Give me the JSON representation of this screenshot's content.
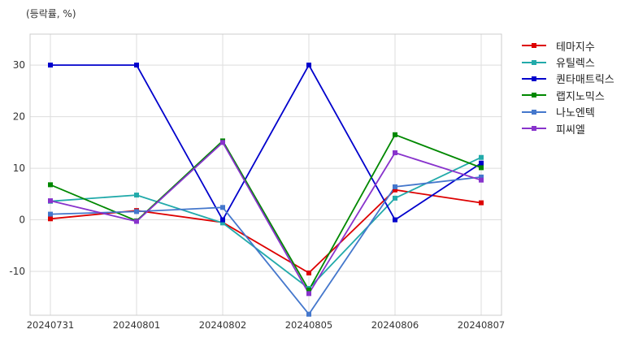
{
  "chart_data": {
    "type": "line",
    "unit_label": "(등락률, %)",
    "x": [
      "20240731",
      "20240801",
      "20240802",
      "20240805",
      "20240806",
      "20240807"
    ],
    "ylim": [
      -18.5,
      36
    ],
    "yticks": [
      -10,
      0,
      10,
      20,
      30
    ],
    "grid": true,
    "legend_position": "outside-right-top",
    "series": [
      {
        "name": "테마지수",
        "color": "#dd0000",
        "values": [
          0.2,
          1.8,
          -0.5,
          -10.3,
          5.8,
          3.3
        ]
      },
      {
        "name": "유틸렉스",
        "color": "#22aaaa",
        "values": [
          3.6,
          4.8,
          -0.6,
          -13.3,
          4.2,
          12.1
        ]
      },
      {
        "name": "퀀타매트릭스",
        "color": "#0000cc",
        "values": [
          30.0,
          30.0,
          0.0,
          30.0,
          0.0,
          11.0
        ]
      },
      {
        "name": "랩지노믹스",
        "color": "#008800",
        "values": [
          6.8,
          -0.2,
          15.3,
          -13.6,
          16.5,
          10.1
        ]
      },
      {
        "name": "나노엔텍",
        "color": "#4477cc",
        "values": [
          1.1,
          1.6,
          2.4,
          -18.3,
          6.4,
          8.3
        ]
      },
      {
        "name": "피씨엘",
        "color": "#8833cc",
        "values": [
          3.7,
          -0.3,
          15.0,
          -14.3,
          13.0,
          7.7
        ]
      }
    ]
  }
}
